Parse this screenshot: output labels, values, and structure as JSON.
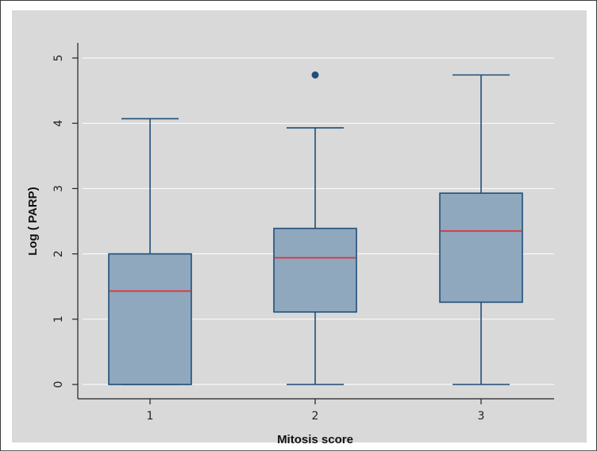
{
  "chart_data": {
    "type": "boxplot",
    "xlabel": "Mitosis score",
    "ylabel": "Log ( PARP)",
    "categories": [
      "1",
      "2",
      "3"
    ],
    "ylim": [
      0,
      5
    ],
    "yticks": [
      "0",
      "1",
      "2",
      "3",
      "4",
      "5"
    ],
    "grid": true,
    "boxes": [
      {
        "category": "1",
        "whisker_low": 0,
        "q1": 0,
        "median": 1.43,
        "q3": 2.0,
        "whisker_high": 4.07,
        "outliers": []
      },
      {
        "category": "2",
        "whisker_low": 0,
        "q1": 1.11,
        "median": 1.94,
        "q3": 2.39,
        "whisker_high": 3.93,
        "outliers": [
          4.74
        ]
      },
      {
        "category": "3",
        "whisker_low": 0,
        "q1": 1.26,
        "median": 2.35,
        "q3": 2.93,
        "whisker_high": 4.74,
        "outliers": []
      }
    ],
    "colors": {
      "plot_background": "#d9d9d9",
      "box_fill": "#8fa8be",
      "box_stroke": "#1f4e79",
      "median": "#e0323a",
      "outlier": "#1f4e79",
      "grid": "#ffffff"
    }
  }
}
